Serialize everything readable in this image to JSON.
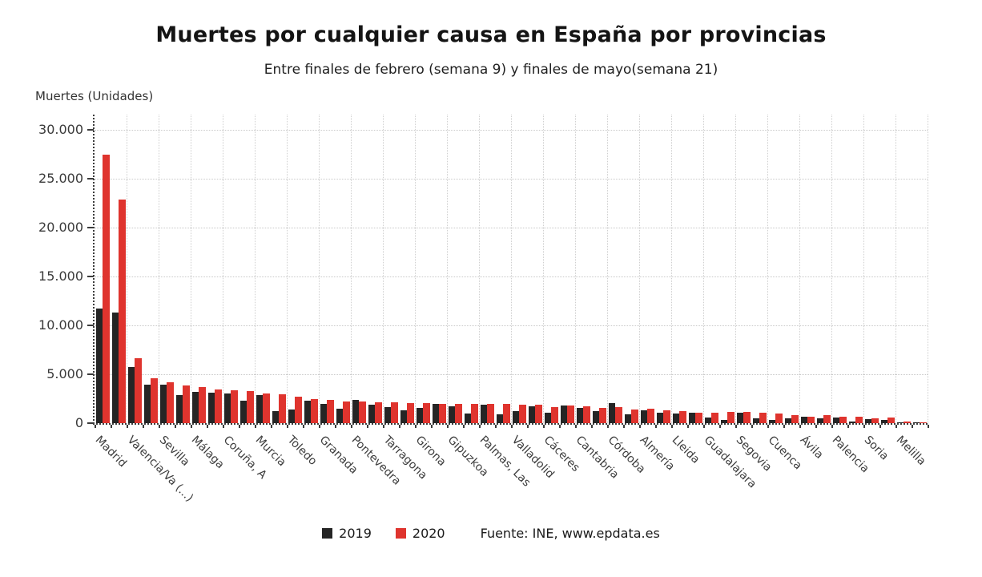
{
  "title": "Muertes por cualquier causa en España por provincias",
  "subtitle": "Entre finales de febrero (semana 9) y finales de mayo(semana 21)",
  "y_axis_title": "Muertes (Unidades)",
  "source": "Fuente: INE, www.epdata.es",
  "colors": {
    "series_2019": "#252525",
    "series_2020": "#df342e",
    "grid": "#c9c9c9",
    "axis": "#3c3c3c"
  },
  "chart_data": {
    "type": "bar",
    "title": "Muertes por cualquier causa en España por provincias",
    "subtitle": "Entre finales de febrero (semana 9) y finales de mayo(semana 21)",
    "ylabel": "Muertes (Unidades)",
    "ylim": [
      0,
      30000
    ],
    "ytick_values": [
      0,
      5000,
      10000,
      15000,
      20000,
      25000,
      30000
    ],
    "ytick_labels": [
      "0",
      "5.000",
      "10.000",
      "15.000",
      "20.000",
      "25.000",
      "30.000"
    ],
    "grid": true,
    "legend_position": "bottom",
    "note": "52 province groups; only alternate groups carry visible axis labels (blank strings are unlabeled groups)",
    "categories": [
      "Madrid",
      "",
      "Valencia/Va (...)",
      "",
      "Sevilla",
      "",
      "Málaga",
      "",
      "Coruña, A",
      "",
      "Murcia",
      "",
      "Toledo",
      "",
      "Granada",
      "",
      "Pontevedra",
      "",
      "Tarragona",
      "",
      "Girona",
      "",
      "Gipuzkoa",
      "",
      "Palmas, Las",
      "",
      "Valladolid",
      "",
      "Cáceres",
      "",
      "Cantabria",
      "",
      "Córdoba",
      "",
      "Almería",
      "",
      "Lleida",
      "",
      "Guadalajara",
      "",
      "Segovia",
      "",
      "Cuenca",
      "",
      "Ávila",
      "",
      "Palencia",
      "",
      "Soria",
      "",
      "Melilla",
      ""
    ],
    "series": [
      {
        "name": "2019",
        "color": "#252525",
        "values": [
          11700,
          11300,
          5750,
          3900,
          3900,
          2900,
          3200,
          3120,
          3040,
          2260,
          2850,
          1240,
          1400,
          2310,
          1990,
          1450,
          2400,
          1900,
          1600,
          1350,
          1530,
          2000,
          1700,
          980,
          1850,
          930,
          1200,
          1750,
          1065,
          1800,
          1530,
          1260,
          2050,
          930,
          1350,
          1050,
          1000,
          1100,
          600,
          350,
          1100,
          510,
          320,
          480,
          640,
          480,
          540,
          200,
          380,
          320,
          120,
          60
        ]
      },
      {
        "name": "2020",
        "color": "#df342e",
        "values": [
          27500,
          22900,
          6650,
          4600,
          4150,
          3850,
          3700,
          3470,
          3390,
          3250,
          3010,
          2930,
          2720,
          2450,
          2340,
          2200,
          2250,
          2150,
          2100,
          2080,
          2060,
          2000,
          2000,
          1960,
          1930,
          1940,
          1870,
          1890,
          1610,
          1800,
          1690,
          1550,
          1600,
          1420,
          1480,
          1300,
          1250,
          1100,
          1050,
          1150,
          1150,
          1050,
          950,
          850,
          650,
          780,
          650,
          640,
          520,
          560,
          130,
          60
        ]
      }
    ],
    "source": "Fuente: INE, www.epdata.es"
  },
  "legend": {
    "items": [
      {
        "label": "2019",
        "color": "#252525"
      },
      {
        "label": "2020",
        "color": "#df342e"
      }
    ]
  }
}
